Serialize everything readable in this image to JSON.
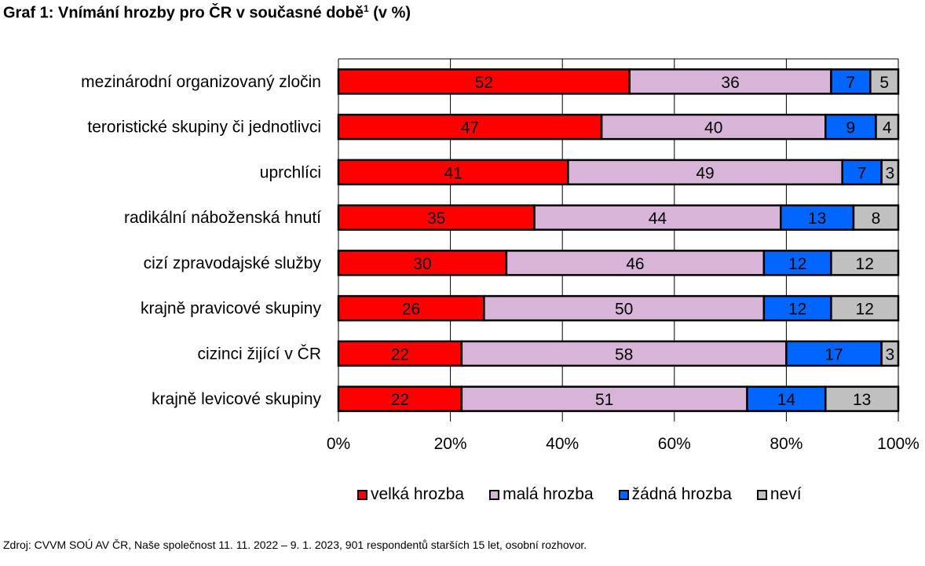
{
  "title": {
    "main": "Graf 1: Vnímání hrozby pro ČR v současné době",
    "footnote_mark": "1",
    "unit": " (v %)"
  },
  "source": "Zdroj: CVVM SOÚ AV ČR, Naše společnost 11. 11. 2022 – 9. 1. 2023, 901 respondentů starších 15 let, osobní rozhovor.",
  "chart_data": {
    "type": "bar",
    "orientation": "horizontal",
    "stacked": true,
    "percent_stacked": true,
    "categories": [
      "mezinárodní organizovaný zločin",
      "teroristické skupiny či jednotlivci",
      "uprchlíci",
      "radikální náboženská hnutí",
      "cizí zpravodajské služby",
      "krajně pravicové skupiny",
      "cizinci žijící v ČR",
      "krajně levicové skupiny"
    ],
    "series": [
      {
        "name": "velká hrozba",
        "color": "#ff0000",
        "values": [
          52,
          47,
          41,
          35,
          30,
          26,
          22,
          22
        ]
      },
      {
        "name": "malá hrozba",
        "color": "#d8b4d8",
        "values": [
          36,
          40,
          49,
          44,
          46,
          50,
          58,
          51
        ]
      },
      {
        "name": "žádná hrozba",
        "color": "#0066ff",
        "values": [
          7,
          9,
          7,
          13,
          12,
          12,
          17,
          14
        ]
      },
      {
        "name": "neví",
        "color": "#c0c0c0",
        "values": [
          5,
          4,
          3,
          8,
          12,
          12,
          3,
          13
        ]
      }
    ],
    "xlim": [
      0,
      100
    ],
    "x_ticks": [
      "0%",
      "20%",
      "40%",
      "60%",
      "80%",
      "100%"
    ],
    "grid": true,
    "legend_position": "bottom"
  }
}
